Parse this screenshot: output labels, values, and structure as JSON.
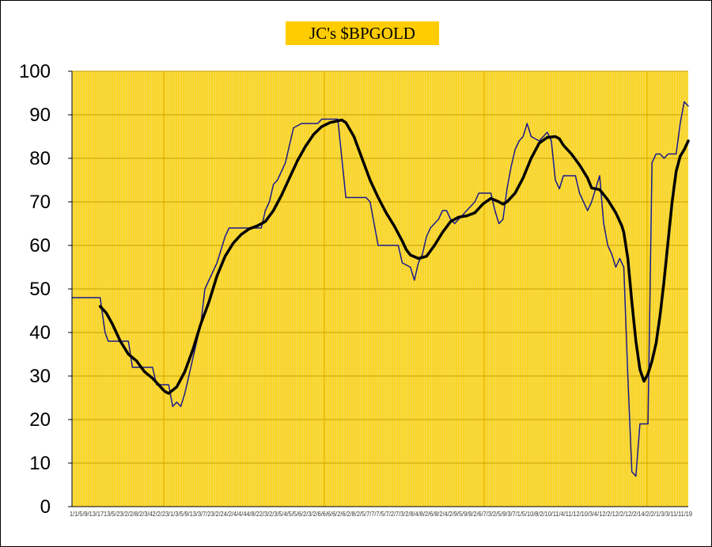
{
  "chart_data": {
    "type": "line",
    "title": "JC's $BPGOLD",
    "xlabel": "",
    "ylabel": "",
    "ylim": [
      0,
      100
    ],
    "yticks": [
      "0",
      "10",
      "20",
      "30",
      "40",
      "50",
      "60",
      "70",
      "80",
      "90",
      "100"
    ],
    "xtick_labels": "1/1/5/9/13/1713/5/23/2/2/8/2/3/42/2/23/1/3/5/9/13/3/7/23/2/24/2/4/4/44/8/22/3/2/3/5/4/5/5/6/2/3/2/6/6/6/6/2/6/2/8/2/5/7/7/7/5/7/2/7/3/2/8/4/8/2/6/8/2/4/2/9/5/9/9/2/6/7/3/2/5/9/3/7/1/5/10/8/2/10/11/4/11/12/10/3/4/12/2/12/2/12/2/14/2/2/1/3/3/11/11/19",
    "plot_background": "#F5DC50",
    "vertical_gridlines": "#FFCC00",
    "series": [
      {
        "color": "#1a1a8c",
        "values": [
          [
            0,
            48
          ],
          [
            7,
            48
          ],
          [
            8.2,
            40
          ],
          [
            9,
            38
          ],
          [
            14,
            38
          ],
          [
            15,
            32
          ],
          [
            20,
            32
          ],
          [
            21,
            28
          ],
          [
            24,
            28
          ],
          [
            25,
            23
          ],
          [
            26,
            24
          ],
          [
            27,
            23
          ],
          [
            28,
            26
          ],
          [
            29,
            30
          ],
          [
            30,
            34
          ],
          [
            31,
            38
          ],
          [
            32,
            42
          ],
          [
            33,
            50
          ],
          [
            34,
            52
          ],
          [
            35,
            54
          ],
          [
            36,
            56
          ],
          [
            37,
            59
          ],
          [
            38,
            62
          ],
          [
            39,
            64
          ],
          [
            47,
            64
          ],
          [
            48,
            68
          ],
          [
            49,
            70
          ],
          [
            50,
            74
          ],
          [
            51,
            75
          ],
          [
            52,
            77
          ],
          [
            53,
            79
          ],
          [
            54,
            83
          ],
          [
            55,
            87
          ],
          [
            57,
            88
          ],
          [
            61,
            88
          ],
          [
            62,
            89
          ],
          [
            66,
            89
          ],
          [
            67,
            80
          ],
          [
            68,
            71
          ],
          [
            73,
            71
          ],
          [
            74,
            70
          ],
          [
            75,
            65
          ],
          [
            76,
            60
          ],
          [
            81,
            60
          ],
          [
            82,
            56
          ],
          [
            84,
            55
          ],
          [
            85,
            52
          ],
          [
            86,
            56
          ],
          [
            87,
            58
          ],
          [
            88,
            62
          ],
          [
            89,
            64
          ],
          [
            90,
            65
          ],
          [
            91,
            66
          ],
          [
            92,
            68
          ],
          [
            93,
            68
          ],
          [
            94,
            66
          ],
          [
            95,
            65
          ],
          [
            96,
            66
          ],
          [
            97,
            67
          ],
          [
            98,
            68
          ],
          [
            99,
            69
          ],
          [
            100,
            70
          ],
          [
            101,
            72
          ],
          [
            104,
            72
          ],
          [
            105,
            68
          ],
          [
            106,
            65
          ],
          [
            107,
            66
          ],
          [
            108,
            73
          ],
          [
            109,
            78
          ],
          [
            110,
            82
          ],
          [
            111,
            84
          ],
          [
            112,
            85
          ],
          [
            113,
            88
          ],
          [
            114,
            85
          ],
          [
            116,
            84
          ],
          [
            117,
            85
          ],
          [
            118,
            86
          ],
          [
            119,
            84
          ],
          [
            120,
            75
          ],
          [
            121,
            73
          ],
          [
            122,
            76
          ],
          [
            125,
            76
          ],
          [
            126,
            72
          ],
          [
            127,
            70
          ],
          [
            128,
            68
          ],
          [
            129,
            70
          ],
          [
            130,
            73
          ],
          [
            131,
            76
          ],
          [
            132,
            65
          ],
          [
            133,
            60
          ],
          [
            134,
            58
          ],
          [
            135,
            55
          ],
          [
            136,
            57
          ],
          [
            137,
            55
          ],
          [
            138,
            30
          ],
          [
            139,
            8
          ],
          [
            140,
            7
          ],
          [
            141,
            19
          ],
          [
            143,
            19
          ],
          [
            144,
            79
          ],
          [
            145,
            81
          ],
          [
            146,
            81
          ],
          [
            147,
            80
          ],
          [
            148,
            81
          ],
          [
            150,
            81
          ],
          [
            151,
            88
          ],
          [
            152,
            93
          ],
          [
            153,
            92
          ]
        ]
      },
      {
        "color": "#000000",
        "values": [
          [
            7,
            46
          ],
          [
            8.5,
            44.5
          ],
          [
            10,
            42
          ],
          [
            12,
            38
          ],
          [
            14,
            35
          ],
          [
            16,
            33.5
          ],
          [
            18,
            31
          ],
          [
            20,
            29.5
          ],
          [
            22,
            27.5
          ],
          [
            23,
            26.5
          ],
          [
            24,
            26
          ],
          [
            26,
            27.5
          ],
          [
            28,
            31
          ],
          [
            30,
            36
          ],
          [
            32,
            42
          ],
          [
            34,
            47
          ],
          [
            36,
            53
          ],
          [
            38,
            57.5
          ],
          [
            40,
            60.5
          ],
          [
            42,
            62.5
          ],
          [
            44,
            63.8
          ],
          [
            46,
            64.5
          ],
          [
            48,
            65.5
          ],
          [
            50,
            68
          ],
          [
            52,
            71.5
          ],
          [
            54,
            75.5
          ],
          [
            56,
            79.5
          ],
          [
            58,
            82.8
          ],
          [
            60,
            85.5
          ],
          [
            62,
            87.3
          ],
          [
            64,
            88.2
          ],
          [
            66,
            88.6
          ],
          [
            67,
            88.8
          ],
          [
            68,
            88.2
          ],
          [
            70,
            85
          ],
          [
            72,
            80
          ],
          [
            74,
            75
          ],
          [
            76,
            71
          ],
          [
            78,
            67.5
          ],
          [
            80,
            64.5
          ],
          [
            82,
            61
          ],
          [
            83,
            59
          ],
          [
            84,
            57.8
          ],
          [
            86,
            57
          ],
          [
            88,
            57.5
          ],
          [
            90,
            60
          ],
          [
            92,
            63
          ],
          [
            94,
            65.5
          ],
          [
            96,
            66.5
          ],
          [
            98,
            66.8
          ],
          [
            100,
            67.5
          ],
          [
            102,
            69.5
          ],
          [
            104,
            70.8
          ],
          [
            106,
            70
          ],
          [
            107,
            69.5
          ],
          [
            108,
            70
          ],
          [
            110,
            72
          ],
          [
            112,
            75.5
          ],
          [
            114,
            80
          ],
          [
            116,
            83.5
          ],
          [
            118,
            84.8
          ],
          [
            120,
            85
          ],
          [
            121,
            84.5
          ],
          [
            122,
            83
          ],
          [
            124,
            81
          ],
          [
            126,
            78.5
          ],
          [
            128,
            75.5
          ],
          [
            129,
            73.2
          ],
          [
            131,
            72.8
          ],
          [
            133,
            70.5
          ],
          [
            135,
            67.5
          ],
          [
            136.5,
            64.5
          ],
          [
            137,
            63
          ],
          [
            138,
            57
          ],
          [
            139,
            47
          ],
          [
            140,
            38
          ],
          [
            141,
            31.5
          ],
          [
            142,
            28.8
          ],
          [
            143,
            30.5
          ],
          [
            144,
            33.5
          ],
          [
            145,
            37.5
          ],
          [
            146,
            44
          ],
          [
            147,
            52
          ],
          [
            148,
            61
          ],
          [
            149,
            70
          ],
          [
            150,
            77
          ],
          [
            151,
            80.5
          ],
          [
            152,
            82
          ],
          [
            153,
            84
          ]
        ]
      }
    ]
  }
}
